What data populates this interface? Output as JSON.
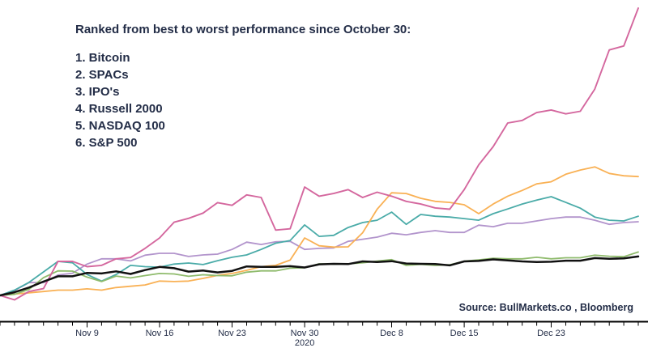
{
  "annotation": {
    "title": "Ranked from best to worst performance since October 30:",
    "items": [
      "1. Bitcoin",
      "2. SPACs",
      "3. IPO's",
      "4. Russell 2000",
      "5. NASDAQ 100",
      "6. S&P 500"
    ]
  },
  "source": {
    "text": "Source: BullMarkets.co , Bloomberg"
  },
  "colors": {
    "text_navy": "#232d47",
    "axis": "#000000",
    "bitcoin": "#d4679e",
    "spacs": "#f9b155",
    "ipos": "#4aaba8",
    "russell_2000": "#b294cc",
    "nasdaq_100": "#8fbb6c",
    "sp_500": "#111111"
  },
  "chart_data": {
    "type": "line",
    "title": "Ranked from best to worst performance since October 30:",
    "values_are": "percent change since Oct 30, 2020 close",
    "grid": false,
    "legend_position": "none (ranking text block serves as legend)",
    "ylim": [
      -5,
      112
    ],
    "x_dates": [
      "Oct 30",
      "Nov 2",
      "Nov 3",
      "Nov 4",
      "Nov 5",
      "Nov 6",
      "Nov 9",
      "Nov 10",
      "Nov 11",
      "Nov 12",
      "Nov 13",
      "Nov 16",
      "Nov 17",
      "Nov 18",
      "Nov 19",
      "Nov 20",
      "Nov 23",
      "Nov 24",
      "Nov 25",
      "Nov 26",
      "Nov 27",
      "Nov 30",
      "Dec 1",
      "Dec 2",
      "Dec 3",
      "Dec 4",
      "Dec 7",
      "Dec 8",
      "Dec 9",
      "Dec 10",
      "Dec 11",
      "Dec 14",
      "Dec 15",
      "Dec 16",
      "Dec 17",
      "Dec 18",
      "Dec 21",
      "Dec 22",
      "Dec 23",
      "Dec 24",
      "Dec 25",
      "Dec 28",
      "Dec 29",
      "Dec 30",
      "Dec 31"
    ],
    "x_tick_labels": [
      {
        "index": 6,
        "label": "Nov 9"
      },
      {
        "index": 11,
        "label": "Nov 16"
      },
      {
        "index": 16,
        "label": "Nov 23"
      },
      {
        "index": 21,
        "label": "Nov 30"
      },
      {
        "index": 27,
        "label": "Dec 8"
      },
      {
        "index": 32,
        "label": "Dec 15"
      },
      {
        "index": 38,
        "label": "Dec 23"
      }
    ],
    "year_label": "2020",
    "year_label_index": 21,
    "series": [
      {
        "name": "Russell 2000",
        "rank": 4,
        "color": "#b294cc",
        "width": 1.8,
        "values": [
          0,
          1.9,
          4.9,
          4.9,
          7.8,
          8.5,
          12,
          14,
          14,
          13.2,
          15.4,
          16.1,
          16.1,
          14.9,
          15.5,
          15.8,
          17.6,
          20.4,
          19.5,
          20.5,
          20.7,
          17.6,
          18,
          18.2,
          20.7,
          21.5,
          22.3,
          23.8,
          23.2,
          24.1,
          24.8,
          24.1,
          24.1,
          26.9,
          26.3,
          27.6,
          27.6,
          28.5,
          29.4,
          30,
          30,
          28.8,
          27.2,
          27.9,
          28.2
        ]
      },
      {
        "name": "IPO's",
        "rank": 3,
        "color": "#4aaba8",
        "width": 1.8,
        "values": [
          0,
          2,
          5,
          9,
          13,
          12.5,
          8,
          5.5,
          8,
          11.5,
          11,
          10.8,
          12,
          12.4,
          11.8,
          13.3,
          14.6,
          15.5,
          17.6,
          20,
          21,
          27,
          22.6,
          23,
          26,
          27.9,
          28.8,
          31.9,
          27.2,
          31,
          30.3,
          30,
          29.4,
          28.8,
          31.3,
          33.1,
          35,
          36.5,
          37.8,
          35.6,
          33.4,
          30,
          28.8,
          28.5,
          30.3
        ]
      },
      {
        "name": "SPACs",
        "rank": 2,
        "color": "#f9b155",
        "width": 1.8,
        "values": [
          0,
          0.5,
          1,
          1.5,
          2,
          2,
          2.5,
          2,
          3,
          3.5,
          4,
          5.5,
          5.3,
          5.5,
          6.5,
          7.7,
          8.4,
          9.6,
          11,
          11.5,
          13.5,
          22,
          19,
          18.5,
          18.6,
          24,
          33,
          39.3,
          39,
          37.2,
          36,
          35.6,
          34.7,
          31.3,
          35,
          38,
          40.2,
          42.7,
          43.5,
          46.4,
          48,
          49.2,
          46.7,
          45.8,
          45.5
        ]
      },
      {
        "name": "NASDAQ 100",
        "rank": 5,
        "color": "#8fbb6c",
        "width": 1.8,
        "values": [
          0,
          0.4,
          2.3,
          6.8,
          9.4,
          9.3,
          7,
          5.3,
          7.4,
          6.7,
          7.6,
          8.4,
          8.2,
          7.3,
          7.9,
          7.6,
          7.5,
          8.9,
          9.4,
          9.4,
          10.4,
          10.6,
          12.1,
          12,
          12.1,
          12.5,
          13.1,
          13.7,
          11.5,
          11.9,
          11.5,
          11.7,
          13.1,
          13.6,
          14.2,
          14,
          14,
          14.6,
          14,
          14.4,
          14.4,
          15.4,
          15,
          14.8,
          16.6
        ]
      },
      {
        "name": "Bitcoin",
        "rank": 1,
        "color": "#d4679e",
        "width": 1.9,
        "values": [
          0,
          -1.7,
          1.5,
          2.6,
          13,
          13,
          11,
          11.5,
          14,
          14.5,
          18,
          22,
          28,
          29.5,
          31.5,
          35.5,
          34.5,
          38.5,
          37.5,
          25,
          25.5,
          41.5,
          38,
          39,
          40.5,
          37.5,
          39.5,
          38,
          36,
          35,
          33.5,
          33,
          40.5,
          50,
          57,
          66,
          67,
          70,
          71,
          69.5,
          70.5,
          79,
          94,
          95.5,
          110
        ]
      },
      {
        "name": "S&P 500",
        "rank": 6,
        "color": "#111111",
        "width": 2.5,
        "values": [
          0,
          1.2,
          3,
          5.3,
          7.3,
          7.3,
          8.6,
          8.4,
          9.2,
          8.2,
          9.7,
          10.9,
          10.4,
          9.1,
          9.5,
          8.8,
          9.4,
          11.1,
          10.9,
          10.9,
          11.2,
          10.7,
          11.9,
          12.1,
          12,
          13,
          12.8,
          13.1,
          12.2,
          12.1,
          12,
          11.5,
          13,
          13.2,
          13.8,
          13.4,
          13,
          12.8,
          12.9,
          13.3,
          13.3,
          14.3,
          14,
          14.2,
          14.9
        ]
      }
    ]
  }
}
